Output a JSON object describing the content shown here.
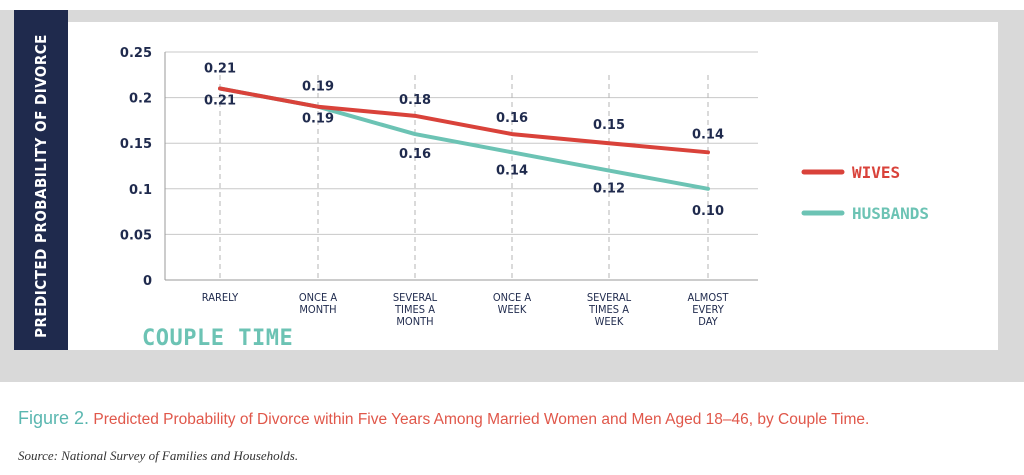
{
  "chart_data": {
    "type": "line",
    "ylabel": "PREDICTED PROBABILITY OF DIVORCE",
    "xlabel": "COUPLE TIME",
    "ylim": [
      0,
      0.25
    ],
    "yticks": [
      "0",
      "0.05",
      "0.1",
      "0.15",
      "0.2",
      "0.25"
    ],
    "ytick_values": [
      0,
      0.05,
      0.1,
      0.15,
      0.2,
      0.25
    ],
    "grid": true,
    "legend_position": "right",
    "categories": [
      [
        "RARELY"
      ],
      [
        "ONCE A",
        "MONTH"
      ],
      [
        "SEVERAL",
        "TIMES A",
        "MONTH"
      ],
      [
        "ONCE A",
        "WEEK"
      ],
      [
        "SEVERAL",
        "TIMES A",
        "WEEK"
      ],
      [
        "ALMOST",
        "EVERY",
        "DAY"
      ]
    ],
    "series": [
      {
        "name": "WIVES",
        "color": "#d9423a",
        "values": [
          0.21,
          0.19,
          0.18,
          0.16,
          0.15,
          0.14
        ],
        "labels": [
          "0.21",
          "0.19",
          "0.18",
          "0.16",
          "0.15",
          "0.14"
        ]
      },
      {
        "name": "HUSBANDS",
        "color": "#6cc3b4",
        "values": [
          0.21,
          0.19,
          0.16,
          0.14,
          0.12,
          0.1
        ],
        "labels": [
          "0.21",
          "0.19",
          "0.16",
          "0.14",
          "0.12",
          "0.10"
        ]
      }
    ]
  },
  "caption": {
    "figure": "Figure 2.",
    "text": "Predicted Probability of Divorce within Five Years Among Married Women and Men Aged 18–46, by Couple Time."
  },
  "source": "Source: National Survey of Families and Households."
}
